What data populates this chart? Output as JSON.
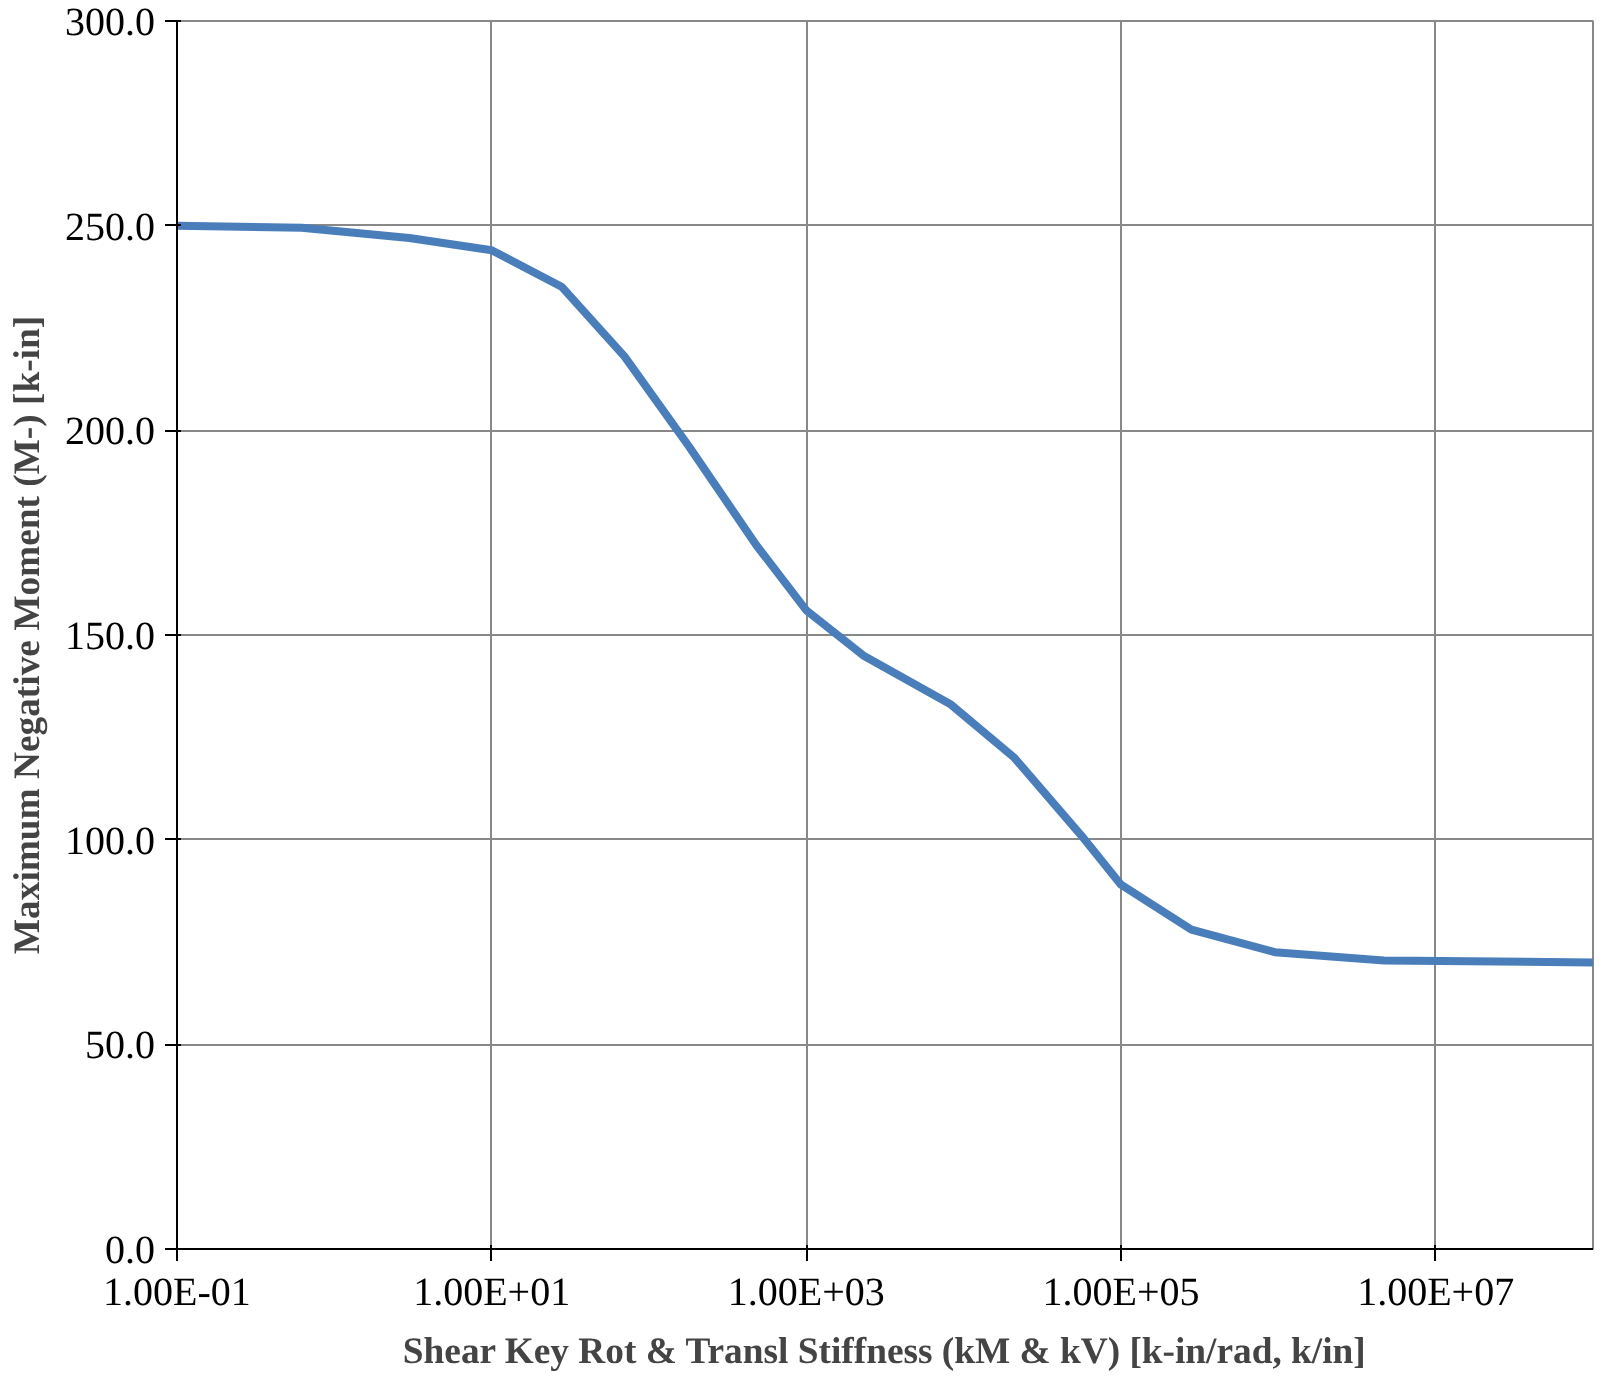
{
  "chart_data": {
    "type": "line",
    "xlabel": "Shear Key Rot & Transl Stiffness (kM & kV) [k-in/rad, k/in]",
    "ylabel": "Maximum Negative Moment (M-) [k-in]",
    "log": "x",
    "grid": true,
    "marker": "none",
    "line_style": "solid",
    "xlim": [
      0.1,
      100000000
    ],
    "ylim": [
      0,
      300
    ],
    "xticks": [
      {
        "value": 0.1,
        "label": "1.00E-01"
      },
      {
        "value": 10,
        "label": "1.00E+01"
      },
      {
        "value": 1000,
        "label": "1.00E+03"
      },
      {
        "value": 100000,
        "label": "1.00E+05"
      },
      {
        "value": 10000000,
        "label": "1.00E+07"
      }
    ],
    "yticks": [
      {
        "value": 0,
        "label": "0.0"
      },
      {
        "value": 50,
        "label": "50.0"
      },
      {
        "value": 100,
        "label": "100.0"
      },
      {
        "value": 150,
        "label": "150.0"
      },
      {
        "value": 200,
        "label": "200.0"
      },
      {
        "value": 250,
        "label": "250.0"
      },
      {
        "value": 300,
        "label": "300.0"
      }
    ],
    "x": [
      0.1,
      0.62,
      3,
      10,
      28,
      70,
      180,
      480,
      1000,
      2300,
      8300,
      21000,
      56000,
      100000,
      280000,
      950000,
      4700000,
      100000000
    ],
    "series": [
      {
        "color": "#4a7ebb",
        "values": [
          250,
          249.5,
          247,
          244,
          235,
          218,
          196,
          172,
          156,
          145,
          133,
          120,
          101,
          89,
          78,
          72.5,
          70.5,
          70
        ]
      }
    ]
  }
}
